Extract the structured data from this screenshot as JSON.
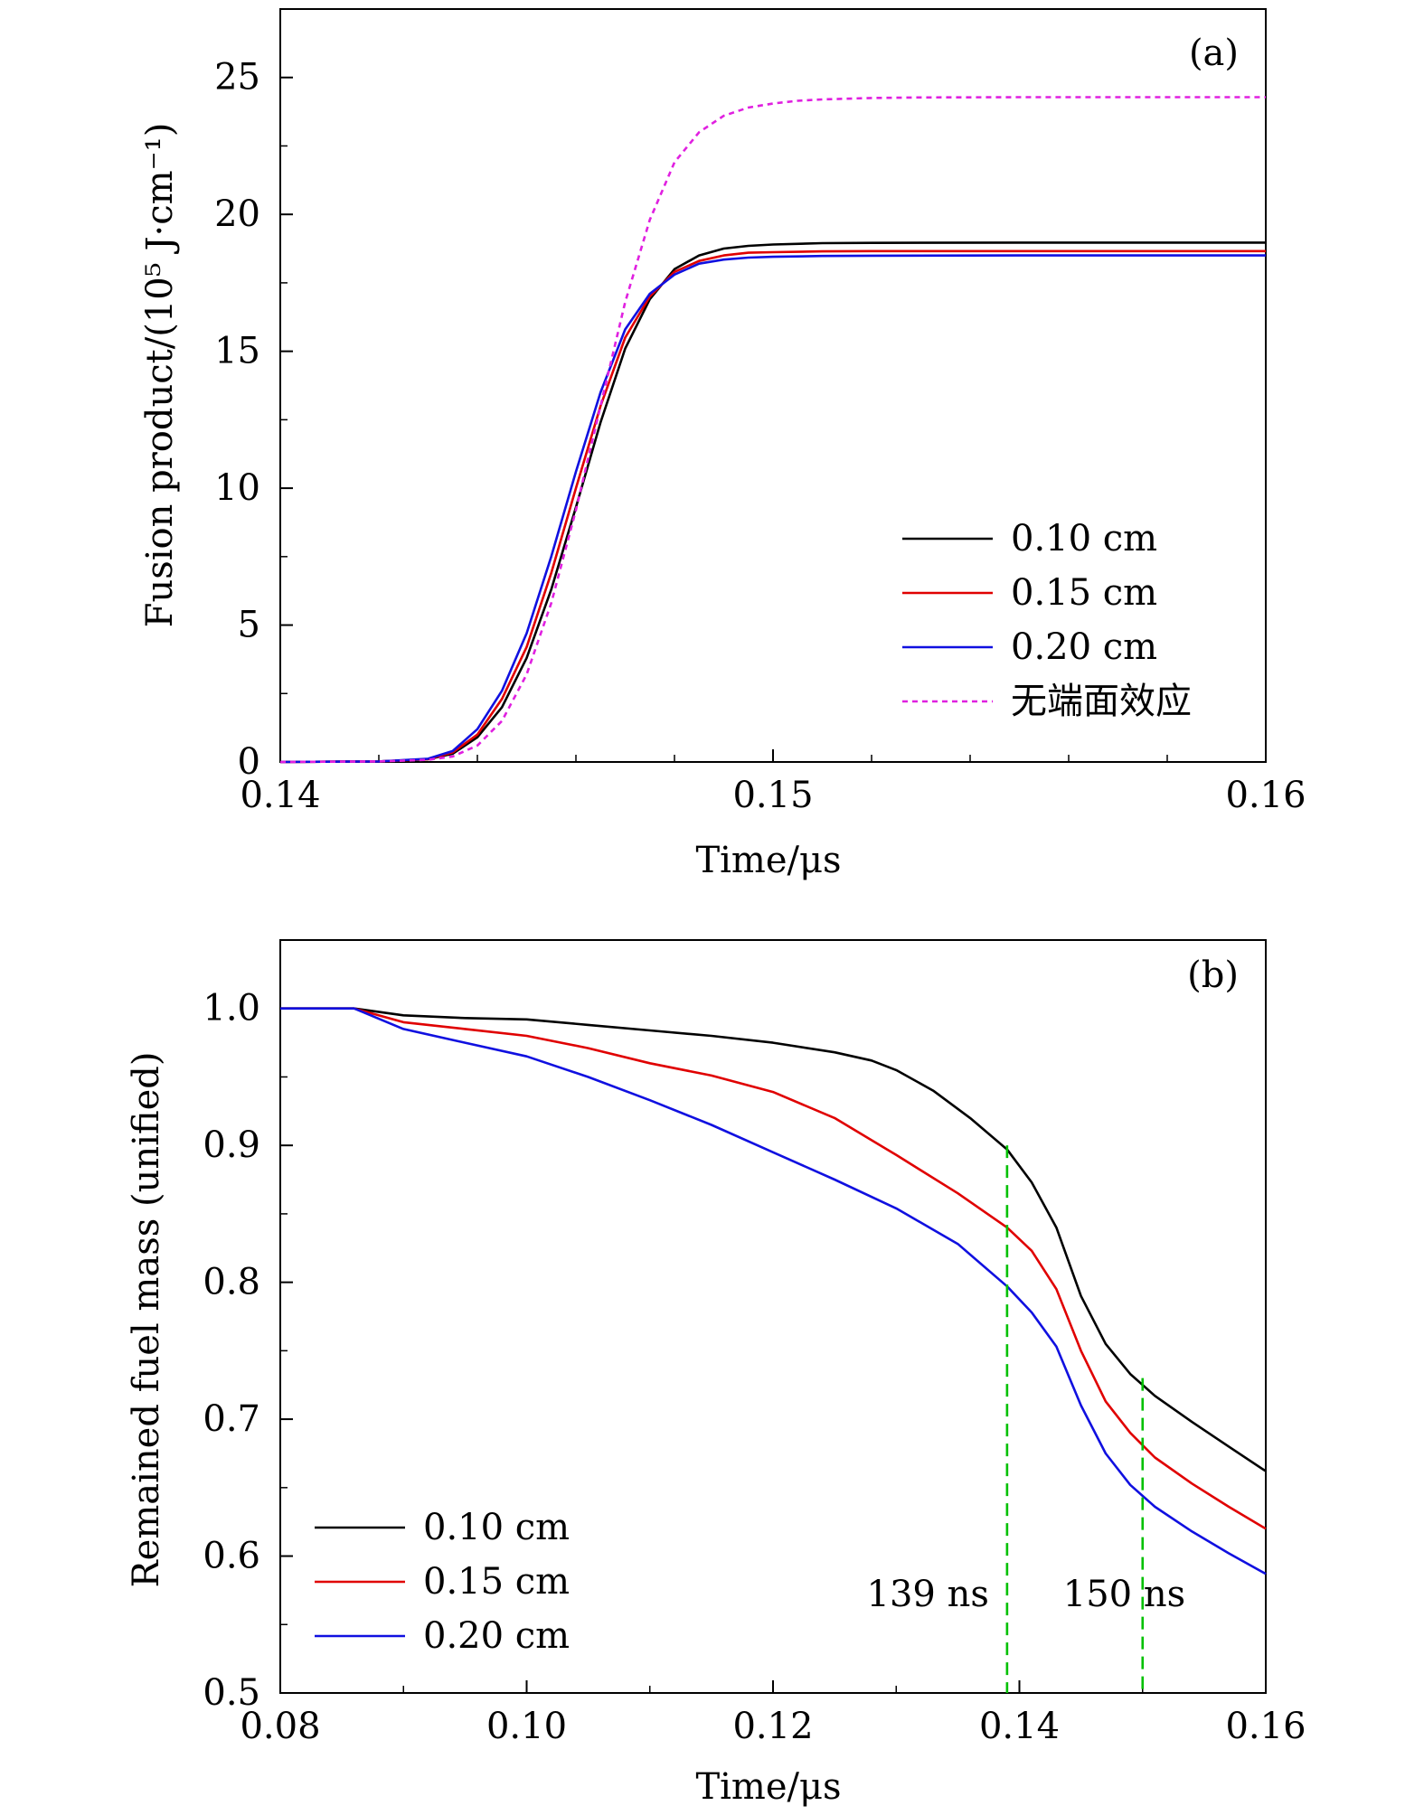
{
  "chart_data": [
    {
      "type": "line",
      "panel_label": "(a)",
      "xlabel": "Time/μs",
      "ylabel": "Fusion product/(10⁵ J·cm⁻¹)",
      "xlim": [
        0.14,
        0.16
      ],
      "ylim": [
        0,
        27.5
      ],
      "x_ticks": [
        0.14,
        0.15,
        0.16
      ],
      "x_tick_labels": [
        "0.14",
        "0.15",
        "0.16"
      ],
      "y_ticks": [
        0,
        5,
        10,
        15,
        20,
        25
      ],
      "y_tick_labels": [
        "0",
        "5",
        "10",
        "15",
        "20",
        "25"
      ],
      "legend_position": "bottom-right",
      "series": [
        {
          "name": "0.10 cm",
          "color": "#000000",
          "dash": false,
          "x": [
            0.14,
            0.142,
            0.143,
            0.1435,
            0.144,
            0.1445,
            0.145,
            0.1455,
            0.146,
            0.1465,
            0.147,
            0.1475,
            0.148,
            0.1485,
            0.149,
            0.1495,
            0.15,
            0.151,
            0.152,
            0.155,
            0.16
          ],
          "y": [
            0,
            0.02,
            0.1,
            0.3,
            0.9,
            2.0,
            3.8,
            6.3,
            9.3,
            12.4,
            15.1,
            16.9,
            18.0,
            18.5,
            18.75,
            18.85,
            18.9,
            18.95,
            18.96,
            18.97,
            18.97
          ]
        },
        {
          "name": "0.15 cm",
          "color": "#e00000",
          "dash": false,
          "x": [
            0.14,
            0.142,
            0.143,
            0.1435,
            0.144,
            0.1445,
            0.145,
            0.1455,
            0.146,
            0.1465,
            0.147,
            0.1475,
            0.148,
            0.1485,
            0.149,
            0.1495,
            0.15,
            0.151,
            0.152,
            0.155,
            0.16
          ],
          "y": [
            0,
            0.02,
            0.1,
            0.35,
            1.0,
            2.3,
            4.2,
            6.9,
            10.0,
            13.0,
            15.5,
            17.0,
            17.9,
            18.3,
            18.5,
            18.6,
            18.62,
            18.65,
            18.66,
            18.66,
            18.66
          ]
        },
        {
          "name": "0.20 cm",
          "color": "#1010e0",
          "dash": false,
          "x": [
            0.14,
            0.142,
            0.143,
            0.1435,
            0.144,
            0.1445,
            0.145,
            0.1455,
            0.146,
            0.1465,
            0.147,
            0.1475,
            0.148,
            0.1485,
            0.149,
            0.1495,
            0.15,
            0.151,
            0.152,
            0.155,
            0.16
          ],
          "y": [
            0,
            0.02,
            0.12,
            0.4,
            1.2,
            2.6,
            4.7,
            7.5,
            10.6,
            13.5,
            15.8,
            17.1,
            17.8,
            18.2,
            18.35,
            18.42,
            18.45,
            18.48,
            18.49,
            18.5,
            18.5
          ]
        },
        {
          "name": "无端面效应",
          "color": "#e020e0",
          "dash": true,
          "x": [
            0.14,
            0.142,
            0.143,
            0.1435,
            0.144,
            0.1445,
            0.145,
            0.1455,
            0.146,
            0.1465,
            0.147,
            0.1475,
            0.148,
            0.1485,
            0.149,
            0.1495,
            0.15,
            0.1505,
            0.151,
            0.152,
            0.153,
            0.155,
            0.16
          ],
          "y": [
            0,
            0.02,
            0.08,
            0.2,
            0.6,
            1.5,
            3.2,
            5.8,
            9.2,
            13.0,
            16.8,
            19.8,
            21.9,
            23.0,
            23.6,
            23.9,
            24.05,
            24.15,
            24.2,
            24.25,
            24.27,
            24.28,
            24.28
          ]
        }
      ]
    },
    {
      "type": "line",
      "panel_label": "(b)",
      "xlabel": "Time/μs",
      "ylabel": "Remained fuel mass (unified)",
      "xlim": [
        0.08,
        0.16
      ],
      "ylim": [
        0.5,
        1.05
      ],
      "x_ticks": [
        0.08,
        0.1,
        0.12,
        0.14,
        0.16
      ],
      "x_tick_labels": [
        "0.08",
        "0.10",
        "0.12",
        "0.14",
        "0.16"
      ],
      "y_ticks": [
        0.5,
        0.6,
        0.7,
        0.8,
        0.9,
        1.0
      ],
      "y_tick_labels": [
        "0.5",
        "0.6",
        "0.7",
        "0.8",
        "0.9",
        "1.0"
      ],
      "legend_position": "bottom-left",
      "series": [
        {
          "name": "0.10 cm",
          "color": "#000000",
          "x": [
            0.08,
            0.086,
            0.09,
            0.095,
            0.1,
            0.105,
            0.11,
            0.115,
            0.12,
            0.125,
            0.128,
            0.13,
            0.133,
            0.136,
            0.139,
            0.141,
            0.143,
            0.145,
            0.147,
            0.149,
            0.151,
            0.154,
            0.157,
            0.16
          ],
          "y": [
            1.0,
            1.0,
            0.995,
            0.993,
            0.992,
            0.988,
            0.984,
            0.98,
            0.975,
            0.968,
            0.962,
            0.955,
            0.94,
            0.92,
            0.897,
            0.873,
            0.84,
            0.79,
            0.755,
            0.733,
            0.717,
            0.698,
            0.68,
            0.662
          ]
        },
        {
          "name": "0.15 cm",
          "color": "#e00000",
          "x": [
            0.08,
            0.086,
            0.09,
            0.095,
            0.1,
            0.105,
            0.11,
            0.115,
            0.12,
            0.125,
            0.13,
            0.135,
            0.139,
            0.141,
            0.143,
            0.145,
            0.147,
            0.149,
            0.151,
            0.154,
            0.157,
            0.16
          ],
          "y": [
            1.0,
            1.0,
            0.99,
            0.985,
            0.98,
            0.971,
            0.96,
            0.951,
            0.939,
            0.92,
            0.893,
            0.865,
            0.84,
            0.823,
            0.795,
            0.75,
            0.713,
            0.69,
            0.672,
            0.653,
            0.636,
            0.62
          ]
        },
        {
          "name": "0.20 cm",
          "color": "#1010e0",
          "x": [
            0.08,
            0.086,
            0.09,
            0.095,
            0.1,
            0.105,
            0.11,
            0.115,
            0.12,
            0.125,
            0.13,
            0.135,
            0.139,
            0.141,
            0.143,
            0.145,
            0.147,
            0.149,
            0.151,
            0.154,
            0.157,
            0.16
          ],
          "y": [
            1.0,
            1.0,
            0.985,
            0.975,
            0.965,
            0.95,
            0.933,
            0.915,
            0.895,
            0.875,
            0.854,
            0.828,
            0.797,
            0.778,
            0.753,
            0.71,
            0.675,
            0.652,
            0.636,
            0.618,
            0.602,
            0.587
          ]
        }
      ],
      "markers": [
        {
          "x": 0.139,
          "y_top": 0.9,
          "label": "139 ns",
          "color": "#00c000"
        },
        {
          "x": 0.15,
          "y_top": 0.73,
          "label": "150 ns",
          "color": "#00c000"
        }
      ]
    }
  ]
}
